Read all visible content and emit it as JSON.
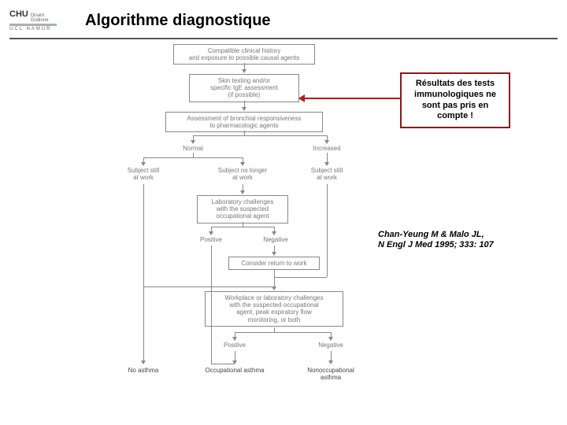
{
  "header": {
    "logo_main": "CHU",
    "logo_sub1": "Dinant",
    "logo_sub2": "Godinne",
    "logo_bottom": "UCL    NAMUR",
    "title": "Algorithme diagnostique"
  },
  "flow": {
    "box1": "Compatible clinical history\nand exposure to possible causal agents",
    "box2": "Skin testing and/or\nspecific IgE assessment\n(if possible)",
    "box3": "Assessment of bronchial responsiveness\nto pharmacologic agents",
    "branch3_left": "Normal",
    "branch3_right": "Increased",
    "l_normal_a": "Subject still\nat work",
    "l_normal_b": "Subject no longer\nat work",
    "l_increased": "Subject still\nat work",
    "box4": "Laboratory challenges\nwith the suspected\noccupational agent",
    "branch4_left": "Positive",
    "branch4_right": "Negative",
    "box5": "Consider return to work",
    "box6": "Workplace or laboratory challenges\nwith the suspected occupational\nagent, peak expiratory flow\nmonitoring, or both",
    "branch6_left": "Positive",
    "branch6_right": "Negative",
    "out_left": "No asthma",
    "out_mid": "Occupational asthma",
    "out_right": "Nonoccupational\nasthma"
  },
  "callout": {
    "text": "Résultats des tests\nimmunologiques ne\nsont pas pris en\ncompte !",
    "border_color": "#8b1a1a",
    "text_color": "#000000",
    "arrow_color": "#c01818"
  },
  "citation": {
    "line1": "Chan-Yeung M & Malo JL,",
    "line2": "N Engl J Med 1995; 333: 107"
  },
  "colors": {
    "title_underline": "#555555",
    "box_border": "#888888",
    "box_text": "#777777",
    "background": "#ffffff"
  }
}
